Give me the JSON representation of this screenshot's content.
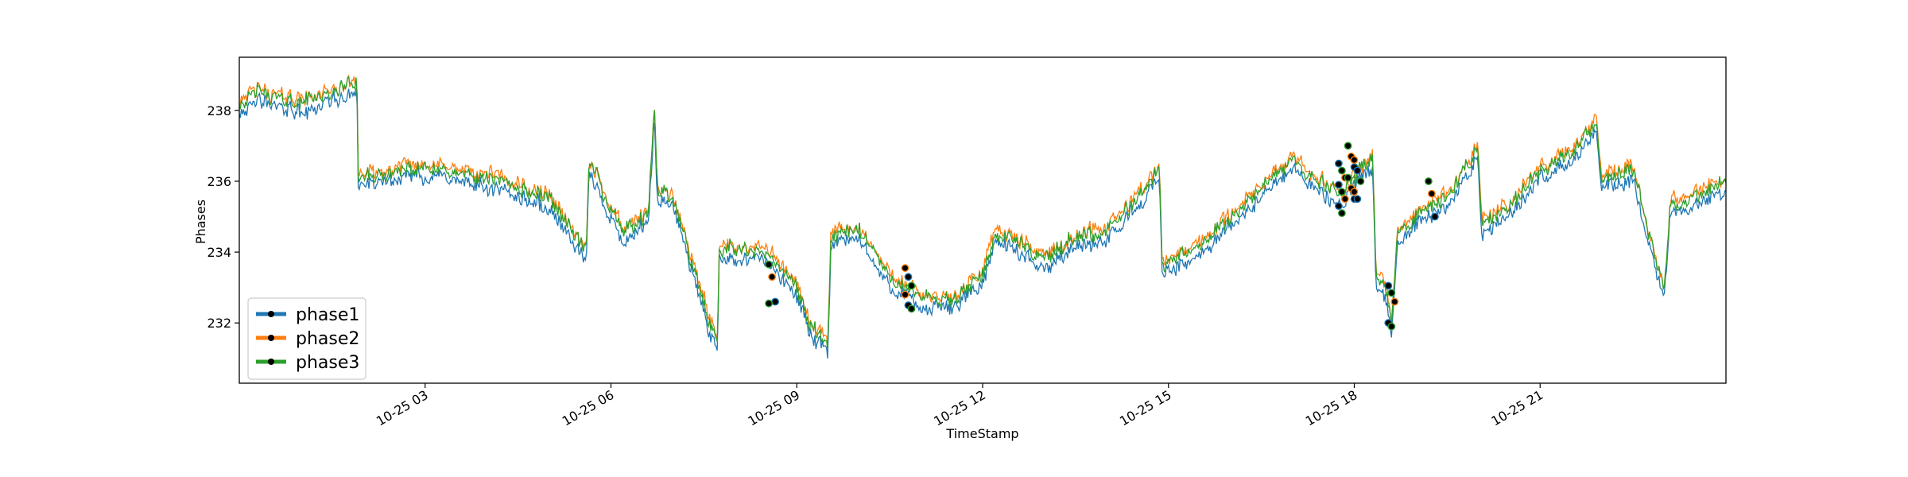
{
  "chart_data": {
    "type": "line",
    "xlabel": "TimeStamp",
    "ylabel": "Phases",
    "x_range": [
      "2020-10-25 00:00",
      "2020-10-26 00:00"
    ],
    "ylim": [
      230.3,
      239.5
    ],
    "x_ticks": [
      {
        "t": 3,
        "label": "10-25 03"
      },
      {
        "t": 6,
        "label": "10-25 06"
      },
      {
        "t": 9,
        "label": "10-25 09"
      },
      {
        "t": 12,
        "label": "10-25 12"
      },
      {
        "t": 15,
        "label": "10-25 15"
      },
      {
        "t": 18,
        "label": "10-25 18"
      },
      {
        "t": 21,
        "label": "10-25 21"
      }
    ],
    "y_ticks": [
      232,
      234,
      236,
      238
    ],
    "grid": false,
    "legend": "lower-left",
    "anomaly_marker_color": "#000000",
    "series": [
      {
        "name": "phase1",
        "color": "#1f77b4",
        "offset": -0.25
      },
      {
        "name": "phase2",
        "color": "#ff7f0e",
        "offset": 0.1
      },
      {
        "name": "phase3",
        "color": "#2ca02c",
        "offset": 0.0
      }
    ],
    "base_trend": [
      [
        0.0,
        238.2
      ],
      [
        0.3,
        238.5
      ],
      [
        1.0,
        238.2
      ],
      [
        1.5,
        238.5
      ],
      [
        1.9,
        238.8
      ],
      [
        1.92,
        236.1
      ],
      [
        3.0,
        236.4
      ],
      [
        4.0,
        236.1
      ],
      [
        5.0,
        235.5
      ],
      [
        5.6,
        234.0
      ],
      [
        5.65,
        236.6
      ],
      [
        6.0,
        235.2
      ],
      [
        6.2,
        234.5
      ],
      [
        6.6,
        235.0
      ],
      [
        6.7,
        237.9
      ],
      [
        6.75,
        235.8
      ],
      [
        7.0,
        235.5
      ],
      [
        7.6,
        232.0
      ],
      [
        7.72,
        231.6
      ],
      [
        7.75,
        234.1
      ],
      [
        8.5,
        234.0
      ],
      [
        9.0,
        233.0
      ],
      [
        9.2,
        232.0
      ],
      [
        9.5,
        231.3
      ],
      [
        9.55,
        234.5
      ],
      [
        10.0,
        234.6
      ],
      [
        10.5,
        233.3
      ],
      [
        11.0,
        232.7
      ],
      [
        11.5,
        232.6
      ],
      [
        12.0,
        233.4
      ],
      [
        12.2,
        234.6
      ],
      [
        13.0,
        233.8
      ],
      [
        13.5,
        234.4
      ],
      [
        14.0,
        234.6
      ],
      [
        14.6,
        235.7
      ],
      [
        14.85,
        236.4
      ],
      [
        14.9,
        233.6
      ],
      [
        15.5,
        234.2
      ],
      [
        16.0,
        235.0
      ],
      [
        16.5,
        235.8
      ],
      [
        17.0,
        236.6
      ],
      [
        17.4,
        236.0
      ],
      [
        17.8,
        235.6
      ],
      [
        18.0,
        236.1
      ],
      [
        18.3,
        236.7
      ],
      [
        18.35,
        233.3
      ],
      [
        18.5,
        233.0
      ],
      [
        18.6,
        232.0
      ],
      [
        18.7,
        234.5
      ],
      [
        19.0,
        235.0
      ],
      [
        19.5,
        235.6
      ],
      [
        20.0,
        236.9
      ],
      [
        20.05,
        234.8
      ],
      [
        20.5,
        235.3
      ],
      [
        21.0,
        236.3
      ],
      [
        21.5,
        236.8
      ],
      [
        21.9,
        237.6
      ],
      [
        22.0,
        236.1
      ],
      [
        22.5,
        236.3
      ],
      [
        23.0,
        232.8
      ],
      [
        23.1,
        235.3
      ],
      [
        23.5,
        235.6
      ],
      [
        24.0,
        236.0
      ]
    ],
    "anomalies": [
      {
        "t": 8.6,
        "values": [
          233.65,
          233.3,
          232.6,
          232.55
        ]
      },
      {
        "t": 10.8,
        "values": [
          233.55,
          233.3,
          233.05,
          232.8,
          232.5,
          232.4
        ]
      },
      {
        "t": 17.8,
        "values": [
          236.5,
          236.3,
          236.1,
          235.9,
          235.7,
          235.5,
          235.3,
          235.1
        ]
      },
      {
        "t": 17.95,
        "values": [
          237.0,
          236.7,
          236.4,
          236.1,
          235.8,
          235.5
        ]
      },
      {
        "t": 18.05,
        "values": [
          236.6,
          236.3,
          236.0,
          235.7,
          235.5
        ]
      },
      {
        "t": 18.6,
        "values": [
          233.05,
          232.85,
          232.6,
          232.0,
          231.9
        ]
      },
      {
        "t": 19.25,
        "values": [
          236.0,
          235.65,
          235.0
        ]
      }
    ]
  }
}
